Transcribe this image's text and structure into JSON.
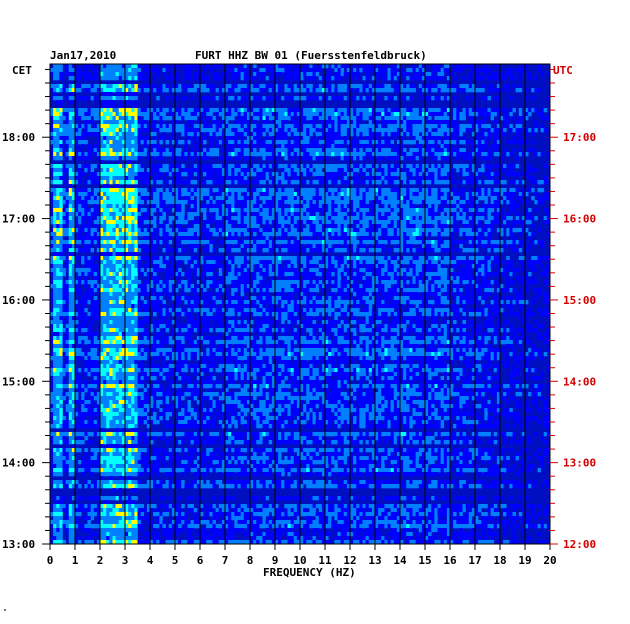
{
  "header": {
    "date": "Jan17,2010",
    "station": "FURT HHZ BW 01 (Fuersstenfeldbruck)"
  },
  "axes": {
    "left_zone": "CET",
    "right_zone": "UTC",
    "xlabel": "FREQUENCY (HZ)",
    "left_color": "#000000",
    "right_color": "#d40000"
  },
  "footer_mark": "\"",
  "chart_data": {
    "type": "heatmap",
    "title": "FURT HHZ BW 01 (Fuersstenfeldbruck)",
    "xlabel": "FREQUENCY (HZ)",
    "xlim": [
      0,
      20
    ],
    "x_ticks": [
      0,
      1,
      2,
      3,
      4,
      5,
      6,
      7,
      8,
      9,
      10,
      11,
      12,
      13,
      14,
      15,
      16,
      17,
      18,
      19,
      20
    ],
    "ylim_cet_hours": [
      13,
      18.9
    ],
    "y_ticks_cet": [
      "13:00",
      "14:00",
      "15:00",
      "16:00",
      "17:00",
      "18:00"
    ],
    "y_ticks_utc": [
      "12:00",
      "13:00",
      "14:00",
      "15:00",
      "16:00",
      "17:00"
    ],
    "colormap": [
      "#000080",
      "#0000ff",
      "#0080ff",
      "#00ffff",
      "#ffff00",
      "#ff0000"
    ],
    "features": {
      "strong_narrow_band_hz": [
        0.3,
        0.9
      ],
      "broad_energy_band_hz": [
        2.0,
        3.5
      ],
      "dominant_color": "#0030ff"
    }
  }
}
